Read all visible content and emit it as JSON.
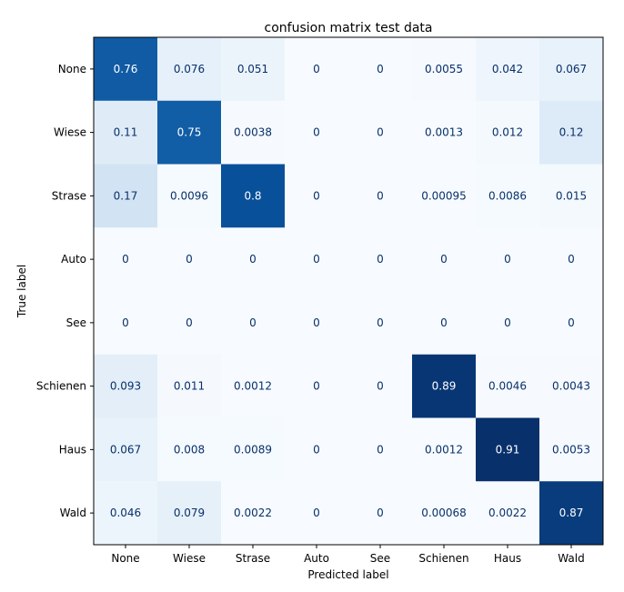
{
  "chart_data": {
    "type": "heatmap",
    "title": "confusion matrix test data",
    "xlabel": "Predicted label",
    "ylabel": "True label",
    "x_categories": [
      "None",
      "Wiese",
      "Strase",
      "Auto",
      "See",
      "Schienen",
      "Haus",
      "Wald"
    ],
    "y_categories": [
      "None",
      "Wiese",
      "Strase",
      "Auto",
      "See",
      "Schienen",
      "Haus",
      "Wald"
    ],
    "values": [
      [
        0.76,
        0.076,
        0.051,
        0,
        0,
        0.0055,
        0.042,
        0.067
      ],
      [
        0.11,
        0.75,
        0.0038,
        0,
        0,
        0.0013,
        0.012,
        0.12
      ],
      [
        0.17,
        0.0096,
        0.8,
        0,
        0,
        0.00095,
        0.0086,
        0.015
      ],
      [
        0,
        0,
        0,
        0,
        0,
        0,
        0,
        0
      ],
      [
        0,
        0,
        0,
        0,
        0,
        0,
        0,
        0
      ],
      [
        0.093,
        0.011,
        0.0012,
        0,
        0,
        0.89,
        0.0046,
        0.0043
      ],
      [
        0.067,
        0.008,
        0.0089,
        0,
        0,
        0.0012,
        0.91,
        0.0053
      ],
      [
        0.046,
        0.079,
        0.0022,
        0,
        0,
        0.00068,
        0.0022,
        0.87
      ]
    ],
    "value_labels": [
      [
        "0.76",
        "0.076",
        "0.051",
        "0",
        "0",
        "0.0055",
        "0.042",
        "0.067"
      ],
      [
        "0.11",
        "0.75",
        "0.0038",
        "0",
        "0",
        "0.0013",
        "0.012",
        "0.12"
      ],
      [
        "0.17",
        "0.0096",
        "0.8",
        "0",
        "0",
        "0.00095",
        "0.0086",
        "0.015"
      ],
      [
        "0",
        "0",
        "0",
        "0",
        "0",
        "0",
        "0",
        "0"
      ],
      [
        "0",
        "0",
        "0",
        "0",
        "0",
        "0",
        "0",
        "0"
      ],
      [
        "0.093",
        "0.011",
        "0.0012",
        "0",
        "0",
        "0.89",
        "0.0046",
        "0.0043"
      ],
      [
        "0.067",
        "0.008",
        "0.0089",
        "0",
        "0",
        "0.0012",
        "0.91",
        "0.0053"
      ],
      [
        "0.046",
        "0.079",
        "0.0022",
        "0",
        "0",
        "0.00068",
        "0.0022",
        "0.87"
      ]
    ],
    "colormap": "Blues",
    "value_range": [
      0,
      0.91
    ],
    "colors": {
      "low": "#f7fbff",
      "high": "#08306b",
      "text_light": "#ffffff",
      "text_dark": "#08306b"
    },
    "grid": false
  }
}
